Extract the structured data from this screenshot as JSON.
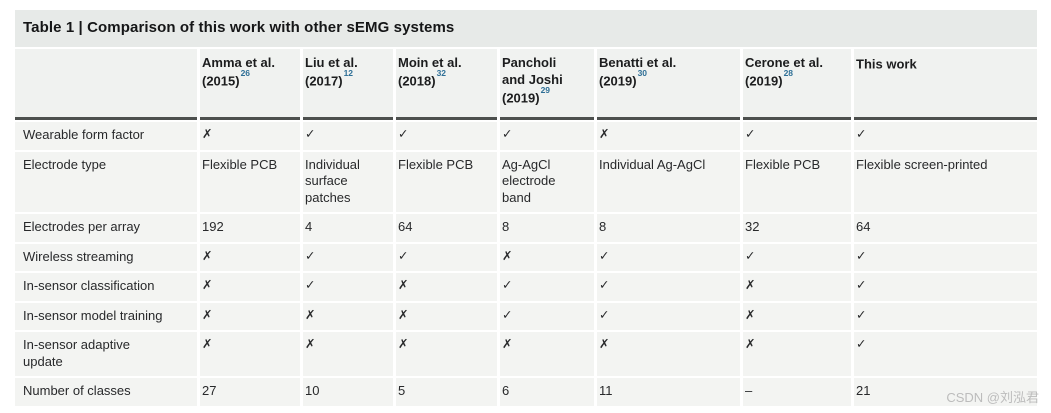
{
  "title": "Table 1 | Comparison of this work with other sEMG systems",
  "watermark": "CSDN @刘泓君",
  "colors": {
    "title_band": "#e7eae8",
    "header_band": "#f0f2f0",
    "row_band": "#f3f4f2",
    "header_rule": "#4d504e",
    "reference_blue": "#2e6f96",
    "text": "#28292b",
    "watermark_gray": "#bcbcbc"
  },
  "glyphs": {
    "yes": "✓",
    "no": "✗"
  },
  "columns": [
    {
      "label": "Amma et al.\n(2015)",
      "ref": "26"
    },
    {
      "label": "Liu et al.\n(2017)",
      "ref": "12"
    },
    {
      "label": "Moin et al.\n(2018)",
      "ref": "32"
    },
    {
      "label": "Pancholi\nand Joshi\n(2019)",
      "ref": "29"
    },
    {
      "label": "Benatti et al.\n(2019)",
      "ref": "30"
    },
    {
      "label": "Cerone et al.\n(2019)",
      "ref": "28"
    },
    {
      "label": "This work",
      "ref": ""
    }
  ],
  "rows": [
    {
      "label": "Wearable form factor",
      "cells": [
        "✗",
        "✓",
        "✓",
        "✓",
        "✗",
        "✓",
        "✓"
      ]
    },
    {
      "label": "Electrode type",
      "cells": [
        "Flexible PCB",
        "Individual\nsurface\npatches",
        "Flexible PCB",
        "Ag-AgCl\nelectrode\nband",
        "Individual Ag-AgCl",
        "Flexible PCB",
        "Flexible screen-printed"
      ]
    },
    {
      "label": "Electrodes per array",
      "cells": [
        "192",
        "4",
        "64",
        "8",
        "8",
        "32",
        "64"
      ]
    },
    {
      "label": "Wireless streaming",
      "cells": [
        "✗",
        "✓",
        "✓",
        "✗",
        "✓",
        "✓",
        "✓"
      ]
    },
    {
      "label": "In-sensor classification",
      "cells": [
        "✗",
        "✓",
        "✗",
        "✓",
        "✓",
        "✗",
        "✓"
      ]
    },
    {
      "label": "In-sensor model training",
      "cells": [
        "✗",
        "✗",
        "✗",
        "✓",
        "✓",
        "✗",
        "✓"
      ]
    },
    {
      "label": "In-sensor adaptive\nupdate",
      "cells": [
        "✗",
        "✗",
        "✗",
        "✗",
        "✗",
        "✗",
        "✓"
      ]
    },
    {
      "label": "Number of classes",
      "cells": [
        "27",
        "10",
        "5",
        "6",
        "11",
        "–",
        "21"
      ]
    }
  ]
}
